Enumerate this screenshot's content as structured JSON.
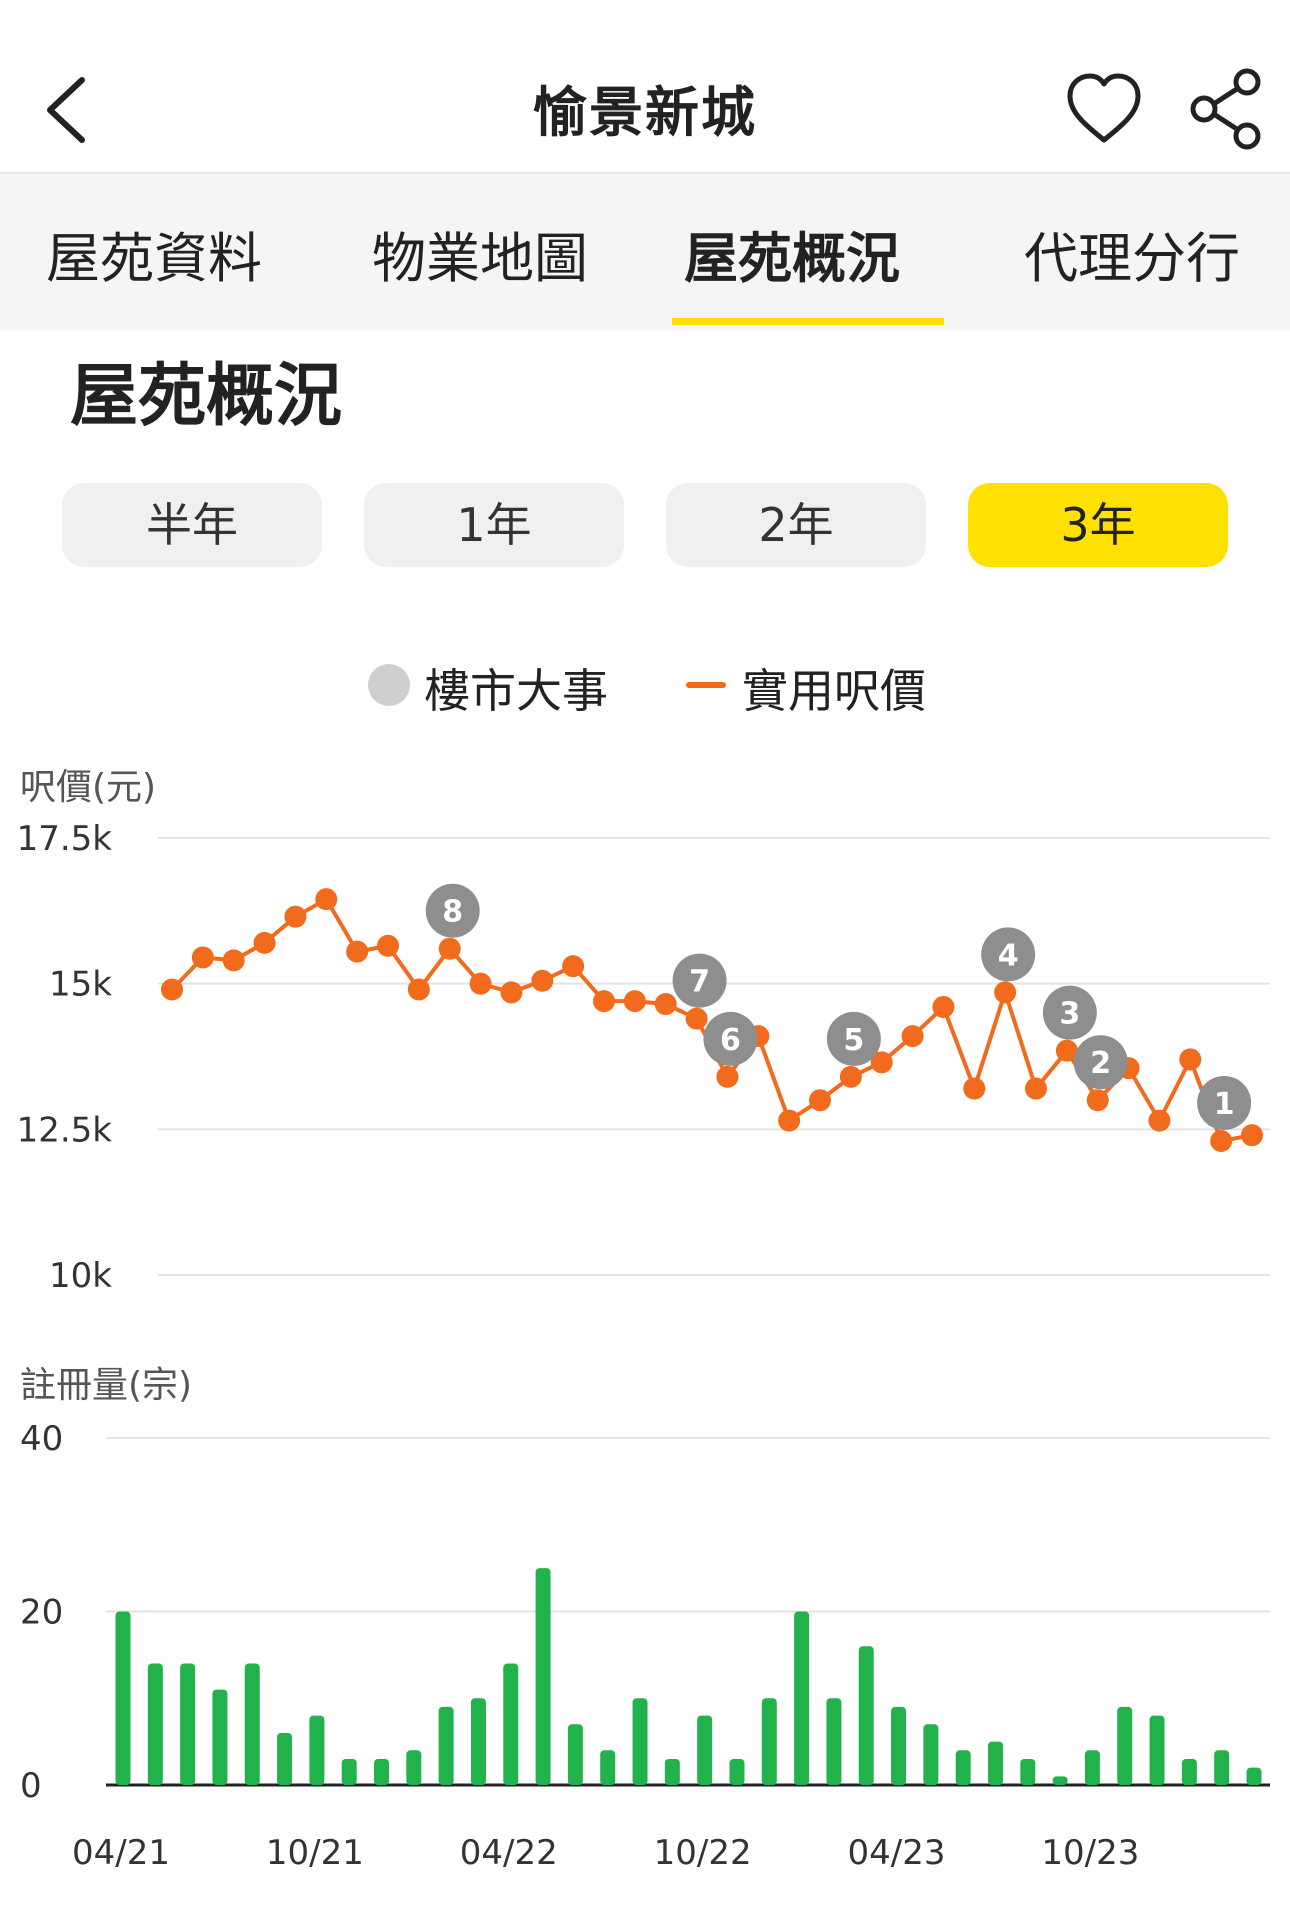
{
  "header": {
    "title": "愉景新城",
    "back_icon": "chevron-left-icon",
    "favorite_icon": "heart-icon",
    "share_icon": "share-icon"
  },
  "tabs": [
    {
      "label": "屋苑資料",
      "active": false
    },
    {
      "label": "物業地圖",
      "active": false
    },
    {
      "label": "屋苑概況",
      "active": true
    },
    {
      "label": "代理分行",
      "active": false
    }
  ],
  "section_title": "屋苑概況",
  "ranges": [
    {
      "label": "半年",
      "active": false
    },
    {
      "label": "1年",
      "active": false
    },
    {
      "label": "2年",
      "active": false
    },
    {
      "label": "3年",
      "active": true
    }
  ],
  "legend": {
    "events": "樓市大事",
    "price": "實用呎價"
  },
  "colors": {
    "accent": "#ffe100",
    "price_line": "#f26a1b",
    "bars": "#22b24c",
    "event_marker": "#8e8e8e"
  },
  "chart_data": [
    {
      "type": "line",
      "ylabel": "呎價(元)",
      "ylim": [
        10000,
        17500
      ],
      "yticks": [
        {
          "v": 17500,
          "label": "17.5k"
        },
        {
          "v": 15000,
          "label": "15k"
        },
        {
          "v": 12500,
          "label": "12.5k"
        },
        {
          "v": 10000,
          "label": "10k"
        }
      ],
      "series": [
        {
          "name": "實用呎價",
          "values": [
            14900,
            15450,
            15400,
            15700,
            16150,
            16450,
            15550,
            15650,
            14900,
            15600,
            15000,
            14850,
            15050,
            15300,
            14700,
            14700,
            14650,
            14400,
            13400,
            14100,
            12650,
            13000,
            13400,
            13650,
            14100,
            14600,
            13200,
            14850,
            13200,
            13850,
            13000,
            13550,
            12650,
            13700,
            12300,
            12400
          ]
        }
      ],
      "events": [
        {
          "label": "8",
          "index": 9
        },
        {
          "label": "7",
          "index": 17
        },
        {
          "label": "6",
          "index": 18
        },
        {
          "label": "5",
          "index": 22
        },
        {
          "label": "4",
          "index": 27
        },
        {
          "label": "3",
          "index": 29
        },
        {
          "label": "2",
          "index": 30
        },
        {
          "label": "1",
          "index": 34
        }
      ],
      "grid": true
    },
    {
      "type": "bar",
      "ylabel": "註冊量(宗)",
      "ylim": [
        0,
        40
      ],
      "yticks": [
        {
          "v": 40,
          "label": "40"
        },
        {
          "v": 20,
          "label": "20"
        },
        {
          "v": 0,
          "label": "0"
        }
      ],
      "values": [
        20,
        14,
        14,
        11,
        14,
        6,
        8,
        3,
        3,
        4,
        9,
        10,
        14,
        25,
        7,
        4,
        10,
        3,
        8,
        3,
        10,
        20,
        10,
        16,
        9,
        7,
        4,
        5,
        3,
        1,
        4,
        9,
        8,
        3,
        4,
        2
      ],
      "xtick_labels": [
        {
          "index": 0,
          "label": "04/21"
        },
        {
          "index": 6,
          "label": "10/21"
        },
        {
          "index": 12,
          "label": "04/22"
        },
        {
          "index": 18,
          "label": "10/22"
        },
        {
          "index": 24,
          "label": "04/23"
        },
        {
          "index": 30,
          "label": "10/23"
        }
      ],
      "grid": true
    }
  ]
}
